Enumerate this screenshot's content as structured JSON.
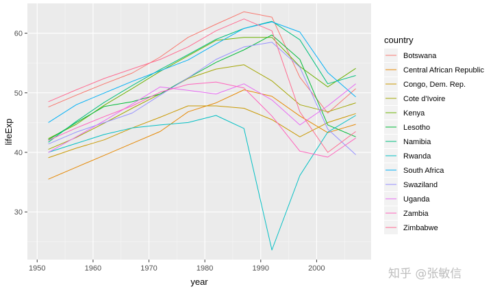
{
  "chart_data": {
    "type": "line",
    "title": "",
    "xlabel": "year",
    "ylabel": "lifeExp",
    "xlim": [
      1948.25,
      2009.75
    ],
    "ylim": [
      22.0,
      65.0
    ],
    "x_ticks": [
      1950,
      1960,
      1970,
      1980,
      1990,
      2000
    ],
    "y_ticks": [
      30,
      40,
      50,
      60
    ],
    "grid": true,
    "legend": {
      "title": "country",
      "placement": "right"
    },
    "x": [
      1952,
      1957,
      1962,
      1967,
      1972,
      1977,
      1982,
      1987,
      1992,
      1997,
      2002,
      2007
    ],
    "series": [
      {
        "name": "Botswana",
        "color": "#F8766D",
        "values": [
          47.6,
          49.6,
          51.5,
          53.3,
          56.0,
          59.3,
          61.5,
          63.6,
          62.7,
          52.6,
          46.6,
          50.7
        ]
      },
      {
        "name": "Central African Republic",
        "color": "#E58700",
        "values": [
          35.5,
          37.5,
          39.5,
          41.5,
          43.5,
          46.8,
          48.3,
          50.5,
          49.4,
          46.1,
          43.3,
          44.7
        ]
      },
      {
        "name": "Congo, Dem. Rep.",
        "color": "#C99800",
        "values": [
          39.1,
          40.7,
          42.1,
          44.1,
          45.9,
          47.8,
          47.8,
          47.4,
          45.5,
          42.6,
          45.0,
          46.5
        ]
      },
      {
        "name": "Cote d'Ivoire",
        "color": "#A3A500",
        "values": [
          40.5,
          42.5,
          44.9,
          47.4,
          49.8,
          52.4,
          53.98,
          54.7,
          52.0,
          47.99,
          46.8,
          48.3
        ]
      },
      {
        "name": "Kenya",
        "color": "#6BB100",
        "values": [
          42.3,
          44.7,
          47.9,
          50.7,
          53.6,
          56.2,
          58.8,
          59.3,
          59.3,
          54.4,
          50.99,
          54.1
        ]
      },
      {
        "name": "Lesotho",
        "color": "#00BA38",
        "values": [
          42.1,
          45.0,
          47.7,
          48.5,
          49.8,
          52.5,
          55.1,
          57.2,
          59.7,
          55.6,
          44.6,
          42.6
        ]
      },
      {
        "name": "Namibia",
        "color": "#00BF7D",
        "values": [
          41.7,
          45.2,
          48.4,
          51.2,
          53.9,
          56.4,
          58.97,
          60.8,
          62.0,
          58.9,
          51.5,
          52.9
        ]
      },
      {
        "name": "Rwanda",
        "color": "#00BFC4",
        "values": [
          40.0,
          41.5,
          43.0,
          44.1,
          44.6,
          45.0,
          46.2,
          44.0,
          23.6,
          36.1,
          43.4,
          46.2
        ]
      },
      {
        "name": "South Africa",
        "color": "#00B0F6",
        "values": [
          45.0,
          48.0,
          49.95,
          51.9,
          53.7,
          55.5,
          58.2,
          60.8,
          61.9,
          60.2,
          53.4,
          49.3
        ]
      },
      {
        "name": "Swaziland",
        "color": "#9590FF",
        "values": [
          41.4,
          43.4,
          44.99,
          46.6,
          49.6,
          52.5,
          55.6,
          57.7,
          58.5,
          54.3,
          43.9,
          39.6
        ]
      },
      {
        "name": "Uganda",
        "color": "#E76BF3",
        "values": [
          39.98,
          42.6,
          45.3,
          48.1,
          50.99,
          50.4,
          49.8,
          51.5,
          48.8,
          44.6,
          47.8,
          51.5
        ]
      },
      {
        "name": "Zambia",
        "color": "#FF62BC",
        "values": [
          42.0,
          44.1,
          46.0,
          47.8,
          50.1,
          51.4,
          51.8,
          50.8,
          46.1,
          40.2,
          39.2,
          42.4
        ]
      },
      {
        "name": "Zimbabwe",
        "color": "#FF6C91",
        "values": [
          48.5,
          50.5,
          52.4,
          54.0,
          55.6,
          57.7,
          60.4,
          62.4,
          60.4,
          46.8,
          39.99,
          43.5
        ]
      }
    ]
  },
  "watermark": "知乎 @张敏信"
}
